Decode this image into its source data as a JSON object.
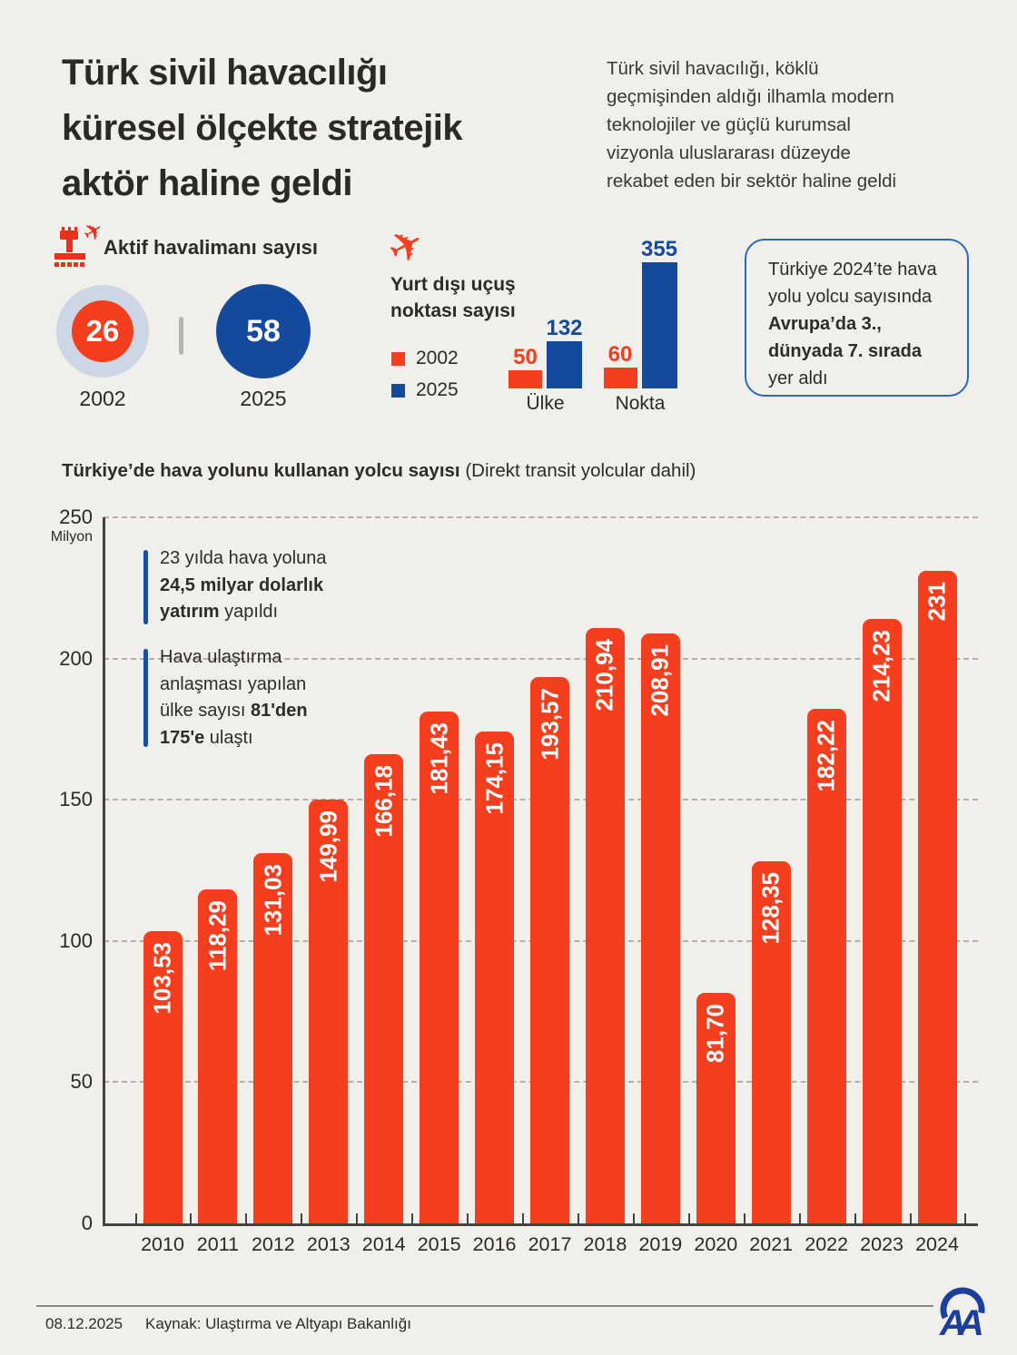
{
  "header": {
    "title": "Türk sivil havacılığı küresel ölçekte stratejik aktör haline geldi",
    "title_lines": [
      "Türk sivil havacılığı",
      "küresel ölçekte stratejik",
      "aktör haline geldi"
    ],
    "intro_lines": [
      "Türk sivil havacılığı, köklü",
      "geçmişinden aldığı ilhamla modern",
      "teknolojiler ve güçlü kurumsal",
      "vizyonla uluslararası düzeyde",
      "rekabet eden bir sektör haline geldi"
    ]
  },
  "airports": {
    "icon": "airport-tower-plane-icon",
    "label": "Aktif havalimanı sayısı",
    "items": [
      {
        "value": "26",
        "year": "2002",
        "color": "#f43e1d"
      },
      {
        "value": "58",
        "year": "2025",
        "color": "#15499c"
      }
    ]
  },
  "flight_points": {
    "icon": "plane-icon",
    "plane_glyph": "✈",
    "title_lines": [
      "Yurt dışı uçuş",
      "noktası sayısı"
    ],
    "legend": [
      {
        "label": "2002",
        "color": "#f43e1d"
      },
      {
        "label": "2025",
        "color": "#15499c"
      }
    ]
  },
  "info_box": {
    "lines": [
      [
        {
          "t": "Türkiye 2024’te hava"
        }
      ],
      [
        {
          "t": "yolu yolcu sayısında"
        }
      ],
      [
        {
          "t": "Avrupa’da 3.,",
          "b": true
        }
      ],
      [
        {
          "t": "dünyada 7. sırada",
          "b": true
        }
      ],
      [
        {
          "t": "yer aldı"
        }
      ]
    ]
  },
  "main_chart_heading": {
    "bold": "Türkiye’de hava yolunu kullanan yolcu sayısı",
    "regular": " (Direkt transit yolcular dahil)"
  },
  "annotations": [
    {
      "lines": [
        [
          {
            "t": "23 yılda hava yoluna"
          }
        ],
        [
          {
            "t": "24,5 milyar dolarlık",
            "b": true
          }
        ],
        [
          {
            "t": "yatırım",
            "b": true
          },
          {
            "t": " yapıldı"
          }
        ]
      ]
    },
    {
      "lines": [
        [
          {
            "t": "Hava ulaştırma"
          }
        ],
        [
          {
            "t": "anlaşması yapılan"
          }
        ],
        [
          {
            "t": "ülke sayısı "
          },
          {
            "t": "81'den",
            "b": true
          }
        ],
        [
          {
            "t": "175'e",
            "b": true
          },
          {
            "t": " ulaştı"
          }
        ]
      ]
    }
  ],
  "chart_data": [
    {
      "type": "bar",
      "subtype": "grouped",
      "title": "Yurt dışı uçuş noktası sayısı",
      "categories": [
        "Ülke",
        "Nokta"
      ],
      "series": [
        {
          "name": "2002",
          "color": "#f43e1d",
          "values": [
            50,
            60
          ],
          "labels": [
            "50",
            "60"
          ]
        },
        {
          "name": "2025",
          "color": "#15499c",
          "values": [
            132,
            355
          ],
          "labels": [
            "132",
            "355"
          ]
        }
      ],
      "legend_position": "left",
      "grid": false
    },
    {
      "type": "bar",
      "title": "Türkiye’de hava yolunu kullanan yolcu sayısı (Direkt transit yolcular dahil)",
      "ylabel": "Milyon",
      "ylabel_unit": "Milyon",
      "categories": [
        "2010",
        "2011",
        "2012",
        "2013",
        "2014",
        "2015",
        "2016",
        "2017",
        "2018",
        "2019",
        "2020",
        "2021",
        "2022",
        "2023",
        "2024"
      ],
      "values": [
        103.53,
        118.29,
        131.03,
        149.99,
        166.18,
        181.43,
        174.15,
        193.57,
        210.94,
        208.91,
        81.7,
        128.35,
        182.22,
        214.23,
        231
      ],
      "value_labels": [
        "103,53",
        "118,29",
        "131,03",
        "149,99",
        "166,18",
        "181,43",
        "174,15",
        "193,57",
        "210,94",
        "208,91",
        "81,70",
        "128,35",
        "182,22",
        "214,23",
        "231"
      ],
      "ylim": [
        0,
        250
      ],
      "yticks": [
        0,
        50,
        100,
        150,
        200,
        250
      ],
      "grid": "horizontal-dashed",
      "bar_color": "#f43e1d"
    }
  ],
  "footer": {
    "date": "08.12.2025",
    "source": "Kaynak: Ulaştırma ve Altyapı Bakanlığı",
    "logo": "anadolu-agency-logo"
  },
  "colors": {
    "background": "#f0efeb",
    "text": "#2d2b29",
    "orange": "#f43e1d",
    "blue": "#15499c",
    "ring_light_blue": "#ccd6e4",
    "info_box_border": "#2a6ab2",
    "annotation_bar_blue": "#1b4f9f",
    "gridline_gray": "#b3b0aa",
    "axis_dark": "#454340"
  }
}
